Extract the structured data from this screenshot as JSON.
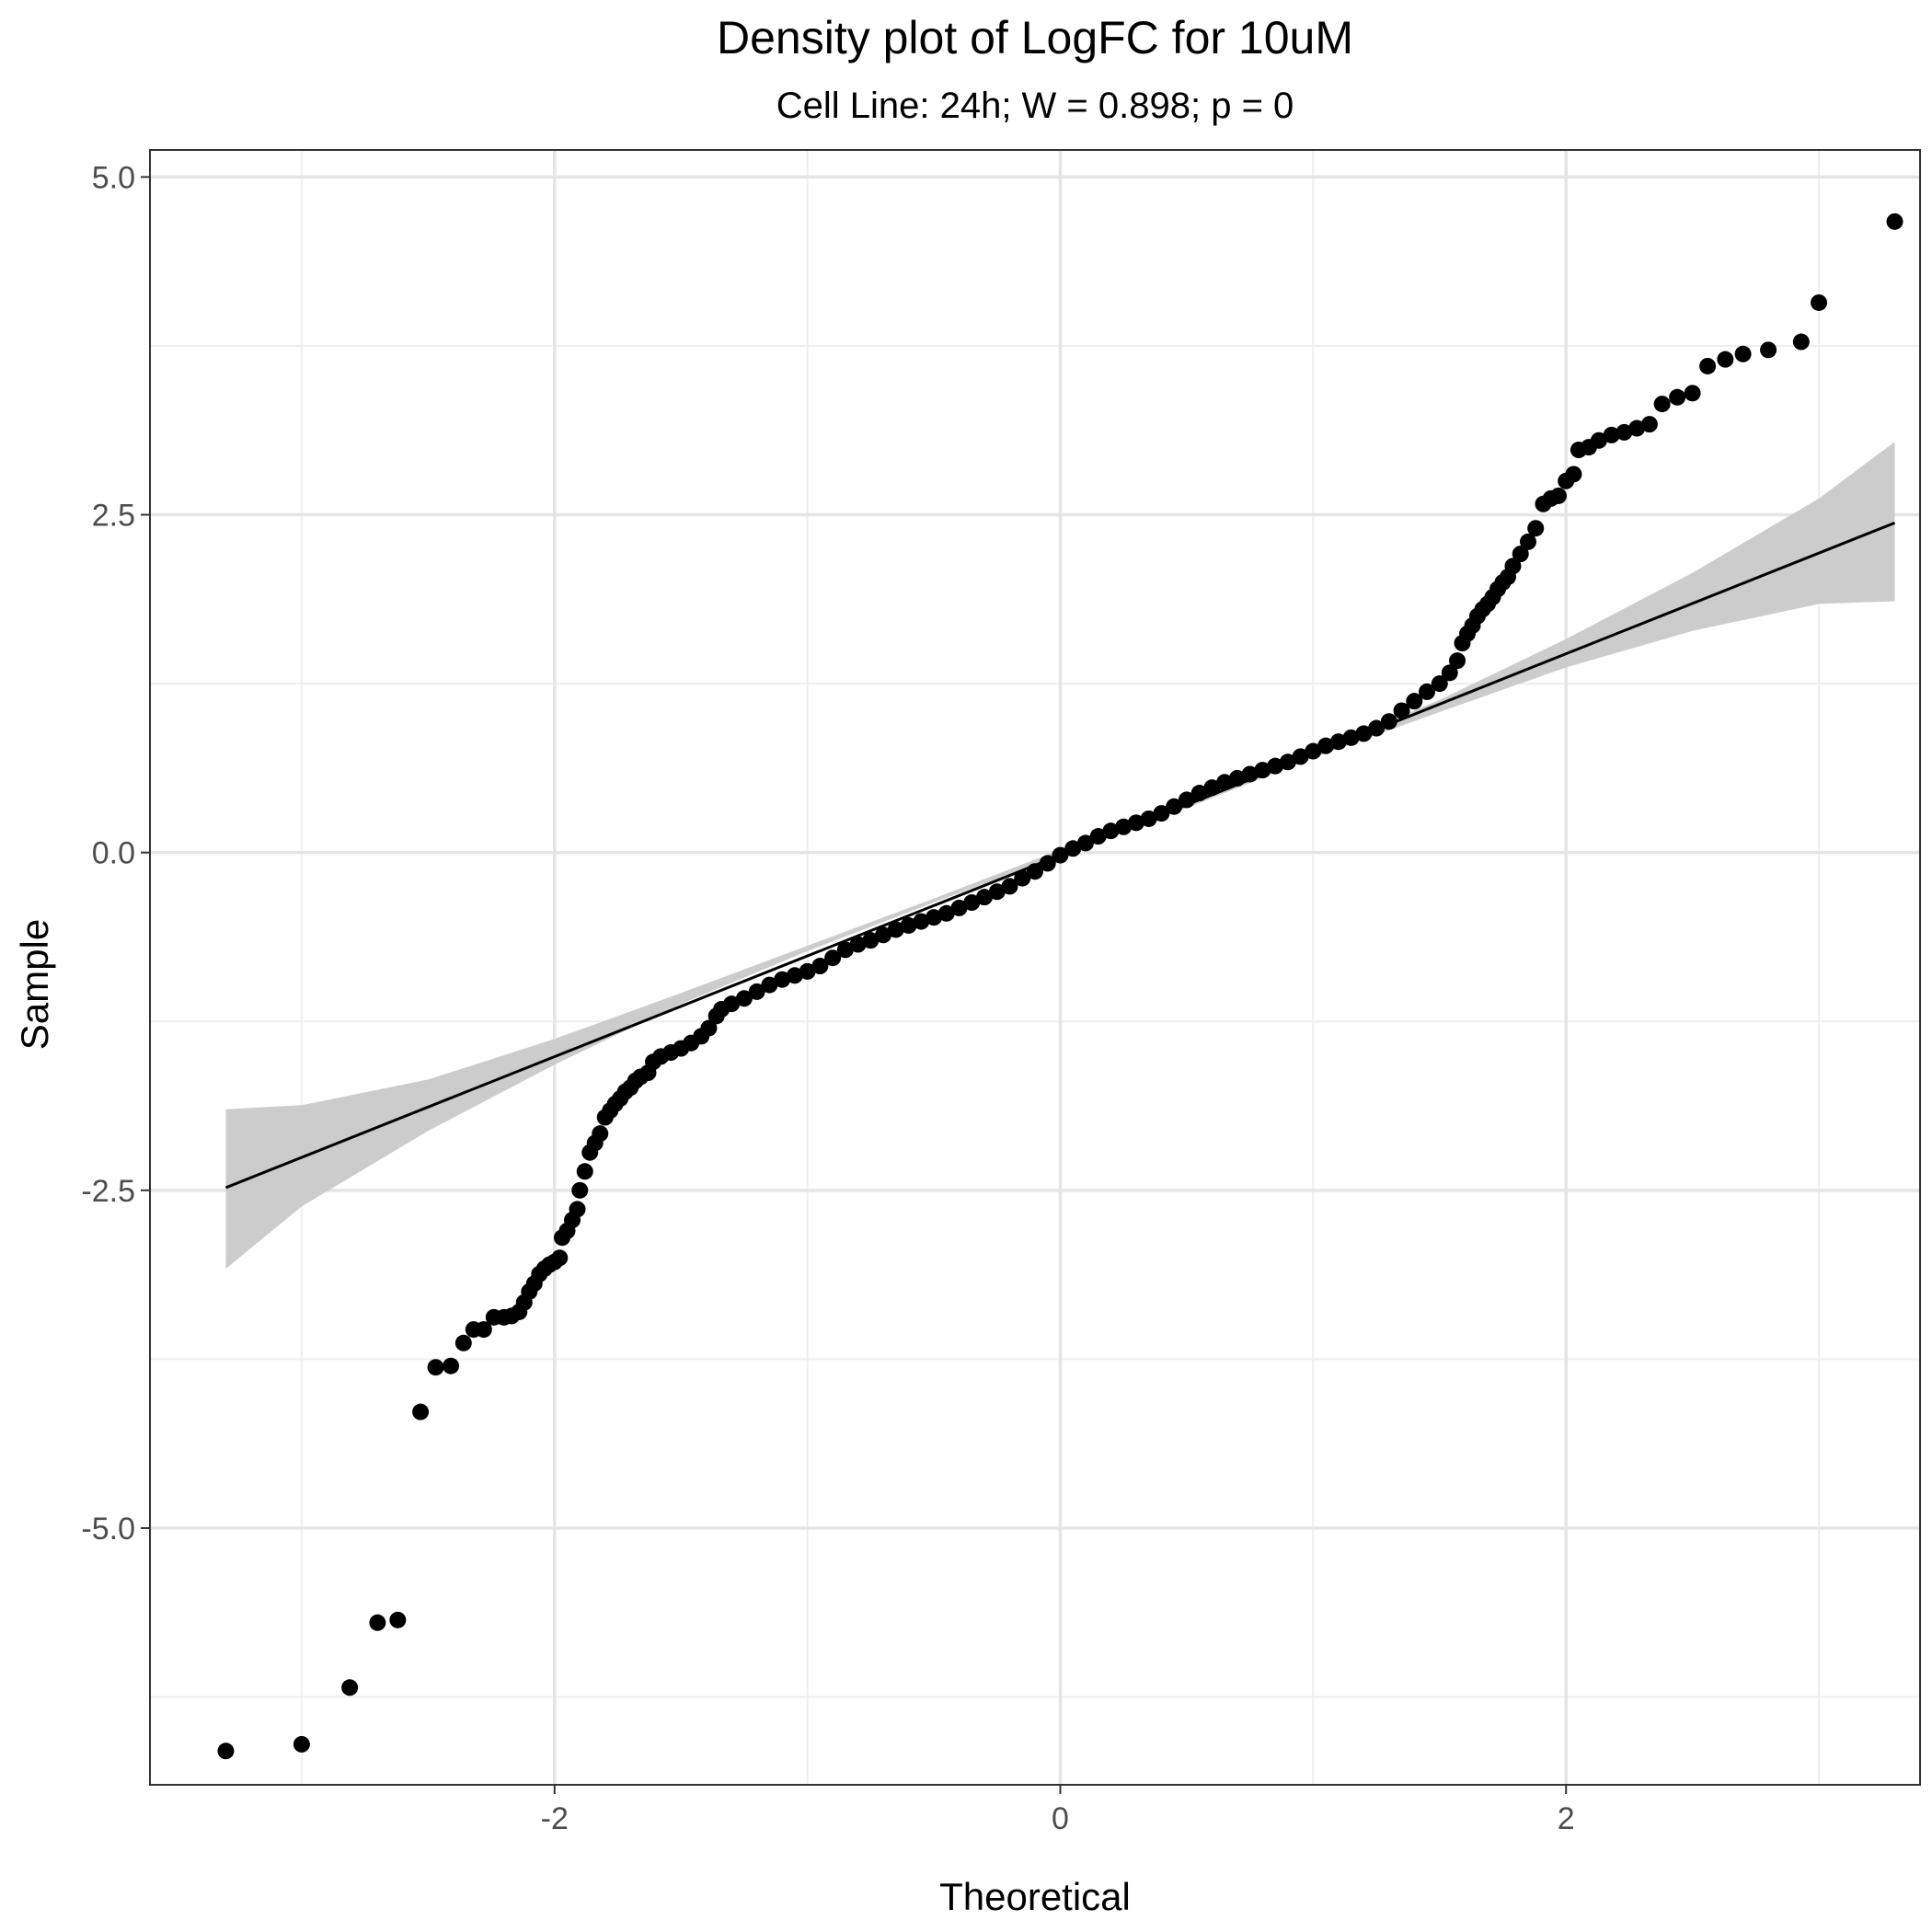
{
  "chart_data": {
    "type": "scatter",
    "title": "Density plot of LogFC for 10uM",
    "subtitle": "Cell Line: 24h; W = 0.898; p = 0",
    "xlabel": "Theoretical",
    "ylabel": "Sample",
    "xlim": [
      -3.6,
      3.4
    ],
    "ylim": [
      -6.9,
      5.2
    ],
    "x_ticks": [
      {
        "value": -2,
        "label": "-2"
      },
      {
        "value": 0,
        "label": "0"
      },
      {
        "value": 2,
        "label": "2"
      }
    ],
    "y_ticks": [
      {
        "value": 5.0,
        "label": "5.0"
      },
      {
        "value": 2.5,
        "label": "2.5"
      },
      {
        "value": 0.0,
        "label": "0.0"
      },
      {
        "value": -2.5,
        "label": "-2.5"
      },
      {
        "value": -5.0,
        "label": "-5.0"
      }
    ],
    "grid": true,
    "x_minor_grid": [
      -3,
      -1,
      1,
      3
    ],
    "y_minor_grid": [
      3.75,
      1.25,
      -1.25,
      -3.75,
      -6.25
    ],
    "colors": {
      "points": "#000000",
      "line": "#000000",
      "band": "#cccccc",
      "grid_major": "#e5e5e5",
      "grid_minor": "#efefef",
      "panel_border": "#333333"
    },
    "series": [
      {
        "type": "points",
        "points": [
          [
            -3.3,
            -6.65
          ],
          [
            -3.0,
            -6.6
          ],
          [
            -2.81,
            -6.18
          ],
          [
            -2.7,
            -5.7
          ],
          [
            -2.62,
            -5.68
          ],
          [
            -2.53,
            -4.14
          ],
          [
            -2.47,
            -3.81
          ],
          [
            -2.41,
            -3.8
          ],
          [
            -2.36,
            -3.63
          ],
          [
            -2.32,
            -3.53
          ],
          [
            -2.28,
            -3.53
          ],
          [
            -2.24,
            -3.44
          ],
          [
            -2.2,
            -3.44
          ],
          [
            -2.17,
            -3.43
          ],
          [
            -2.14,
            -3.4
          ],
          [
            -2.12,
            -3.33
          ],
          [
            -2.1,
            -3.25
          ],
          [
            -2.08,
            -3.19
          ],
          [
            -2.06,
            -3.12
          ],
          [
            -2.04,
            -3.08
          ],
          [
            -2.02,
            -3.05
          ],
          [
            -2.0,
            -3.03
          ],
          [
            -1.98,
            -3.0
          ],
          [
            -1.97,
            -2.85
          ],
          [
            -1.95,
            -2.8
          ],
          [
            -1.93,
            -2.72
          ],
          [
            -1.91,
            -2.64
          ],
          [
            -1.9,
            -2.5
          ],
          [
            -1.88,
            -2.36
          ],
          [
            -1.86,
            -2.22
          ],
          [
            -1.84,
            -2.15
          ],
          [
            -1.82,
            -2.08
          ],
          [
            -1.8,
            -1.96
          ],
          [
            -1.78,
            -1.91
          ],
          [
            -1.76,
            -1.86
          ],
          [
            -1.74,
            -1.82
          ],
          [
            -1.72,
            -1.77
          ],
          [
            -1.7,
            -1.74
          ],
          [
            -1.68,
            -1.69
          ],
          [
            -1.66,
            -1.66
          ],
          [
            -1.63,
            -1.63
          ],
          [
            -1.61,
            -1.55
          ],
          [
            -1.58,
            -1.51
          ],
          [
            -1.54,
            -1.48
          ],
          [
            -1.5,
            -1.45
          ],
          [
            -1.46,
            -1.41
          ],
          [
            -1.42,
            -1.36
          ],
          [
            -1.39,
            -1.3
          ],
          [
            -1.36,
            -1.21
          ],
          [
            -1.34,
            -1.16
          ],
          [
            -1.3,
            -1.12
          ],
          [
            -1.25,
            -1.08
          ],
          [
            -1.2,
            -1.03
          ],
          [
            -1.15,
            -0.98
          ],
          [
            -1.1,
            -0.94
          ],
          [
            -1.05,
            -0.91
          ],
          [
            -1.0,
            -0.88
          ],
          [
            -0.95,
            -0.84
          ],
          [
            -0.9,
            -0.78
          ],
          [
            -0.85,
            -0.72
          ],
          [
            -0.8,
            -0.68
          ],
          [
            -0.75,
            -0.65
          ],
          [
            -0.7,
            -0.61
          ],
          [
            -0.65,
            -0.57
          ],
          [
            -0.6,
            -0.54
          ],
          [
            -0.55,
            -0.51
          ],
          [
            -0.5,
            -0.48
          ],
          [
            -0.45,
            -0.45
          ],
          [
            -0.4,
            -0.41
          ],
          [
            -0.35,
            -0.37
          ],
          [
            -0.3,
            -0.33
          ],
          [
            -0.25,
            -0.29
          ],
          [
            -0.2,
            -0.25
          ],
          [
            -0.15,
            -0.19
          ],
          [
            -0.1,
            -0.14
          ],
          [
            -0.05,
            -0.08
          ],
          [
            0.0,
            -0.02
          ],
          [
            0.05,
            0.03
          ],
          [
            0.1,
            0.07
          ],
          [
            0.15,
            0.12
          ],
          [
            0.2,
            0.16
          ],
          [
            0.25,
            0.19
          ],
          [
            0.3,
            0.22
          ],
          [
            0.35,
            0.25
          ],
          [
            0.4,
            0.29
          ],
          [
            0.45,
            0.34
          ],
          [
            0.5,
            0.39
          ],
          [
            0.55,
            0.44
          ],
          [
            0.6,
            0.48
          ],
          [
            0.65,
            0.52
          ],
          [
            0.7,
            0.55
          ],
          [
            0.75,
            0.58
          ],
          [
            0.8,
            0.61
          ],
          [
            0.85,
            0.64
          ],
          [
            0.9,
            0.67
          ],
          [
            0.95,
            0.71
          ],
          [
            1.0,
            0.75
          ],
          [
            1.05,
            0.79
          ],
          [
            1.1,
            0.82
          ],
          [
            1.15,
            0.85
          ],
          [
            1.2,
            0.88
          ],
          [
            1.25,
            0.92
          ],
          [
            1.3,
            0.97
          ],
          [
            1.35,
            1.05
          ],
          [
            1.4,
            1.12
          ],
          [
            1.45,
            1.19
          ],
          [
            1.5,
            1.25
          ],
          [
            1.54,
            1.33
          ],
          [
            1.57,
            1.42
          ],
          [
            1.59,
            1.55
          ],
          [
            1.61,
            1.62
          ],
          [
            1.63,
            1.68
          ],
          [
            1.65,
            1.75
          ],
          [
            1.67,
            1.8
          ],
          [
            1.69,
            1.84
          ],
          [
            1.71,
            1.89
          ],
          [
            1.73,
            1.95
          ],
          [
            1.75,
            2.0
          ],
          [
            1.77,
            2.04
          ],
          [
            1.79,
            2.12
          ],
          [
            1.82,
            2.21
          ],
          [
            1.85,
            2.3
          ],
          [
            1.88,
            2.4
          ],
          [
            1.91,
            2.58
          ],
          [
            1.94,
            2.62
          ],
          [
            1.97,
            2.64
          ],
          [
            2.0,
            2.75
          ],
          [
            2.03,
            2.8
          ],
          [
            2.05,
            2.98
          ],
          [
            2.09,
            3.0
          ],
          [
            2.13,
            3.05
          ],
          [
            2.18,
            3.09
          ],
          [
            2.23,
            3.11
          ],
          [
            2.28,
            3.14
          ],
          [
            2.33,
            3.17
          ],
          [
            2.38,
            3.32
          ],
          [
            2.44,
            3.37
          ],
          [
            2.5,
            3.4
          ],
          [
            2.56,
            3.6
          ],
          [
            2.63,
            3.65
          ],
          [
            2.7,
            3.69
          ],
          [
            2.8,
            3.72
          ],
          [
            2.93,
            3.78
          ],
          [
            3.0,
            4.07
          ],
          [
            3.3,
            4.67
          ]
        ]
      },
      {
        "type": "reference-line",
        "from": [
          -3.3,
          -2.48
        ],
        "to": [
          3.3,
          2.44
        ]
      },
      {
        "type": "confidence-band",
        "upper": [
          [
            -3.3,
            -1.9
          ],
          [
            -3.0,
            -1.87
          ],
          [
            -2.5,
            -1.68
          ],
          [
            -2.0,
            -1.38
          ],
          [
            -1.5,
            -1.04
          ],
          [
            -1.0,
            -0.69
          ],
          [
            -0.5,
            -0.34
          ],
          [
            0.0,
            0.02
          ],
          [
            0.5,
            0.38
          ],
          [
            1.0,
            0.74
          ],
          [
            1.5,
            1.13
          ],
          [
            2.0,
            1.58
          ],
          [
            2.5,
            2.07
          ],
          [
            3.0,
            2.62
          ],
          [
            3.3,
            3.04
          ]
        ],
        "lower": [
          [
            -3.3,
            -3.08
          ],
          [
            -3.0,
            -2.62
          ],
          [
            -2.5,
            -2.06
          ],
          [
            -2.0,
            -1.57
          ],
          [
            -1.5,
            -1.12
          ],
          [
            -1.0,
            -0.73
          ],
          [
            -0.5,
            -0.37
          ],
          [
            0.0,
            -0.02
          ],
          [
            0.5,
            0.33
          ],
          [
            1.0,
            0.7
          ],
          [
            1.5,
            1.04
          ],
          [
            2.0,
            1.37
          ],
          [
            2.5,
            1.64
          ],
          [
            3.0,
            1.84
          ],
          [
            3.3,
            1.86
          ]
        ]
      }
    ]
  }
}
